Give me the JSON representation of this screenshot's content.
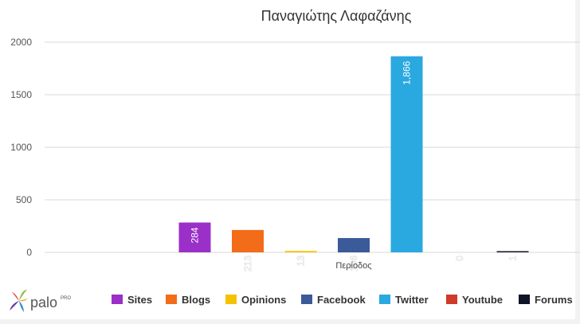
{
  "chart_data": {
    "type": "bar",
    "title": "Παναγιώτης Λαφαζάνης",
    "xlabel": "Περίοδος",
    "ylabel": "",
    "ylim": [
      0,
      2000
    ],
    "yticks": [
      0,
      500,
      1000,
      1500,
      2000
    ],
    "grid": true,
    "legend_position": "bottom",
    "categories": [
      "Περίοδος"
    ],
    "series": [
      {
        "name": "Sites",
        "values": [
          284
        ],
        "label": "284",
        "color": "#9b30c8"
      },
      {
        "name": "Blogs",
        "values": [
          213
        ],
        "label": "213",
        "color": "#f26c1a"
      },
      {
        "name": "Opinions",
        "values": [
          13
        ],
        "label": "13",
        "color": "#f5c200"
      },
      {
        "name": "Facebook",
        "values": [
          136
        ],
        "label": "136",
        "color": "#3a5a9a"
      },
      {
        "name": "Twitter",
        "values": [
          1866
        ],
        "label": "1,866",
        "color": "#2aa8e0"
      },
      {
        "name": "Youtube",
        "values": [
          0
        ],
        "label": "0",
        "color": "#d03a2a"
      },
      {
        "name": "Forums",
        "values": [
          1
        ],
        "label": "1",
        "color": "#101428"
      }
    ]
  },
  "brand": {
    "logo_text": "palo",
    "logo_sup": "PRO",
    "logo_icon": "palo-flower-icon"
  }
}
